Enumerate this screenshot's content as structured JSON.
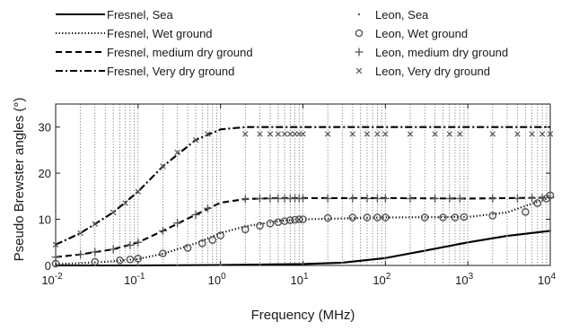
{
  "chart_data": {
    "type": "line",
    "xlabel": "Frequency (MHz)",
    "ylabel": "Pseudo Brewster angles (°)",
    "xscale": "log",
    "xlim": [
      0.01,
      10000
    ],
    "ylim": [
      0,
      35
    ],
    "grid": "vertical dotted",
    "legend_placement": "top, two columns",
    "x_ticks": [
      {
        "value": 0.01,
        "base": "10",
        "exp": "-2"
      },
      {
        "value": 0.1,
        "base": "10",
        "exp": "-1"
      },
      {
        "value": 1,
        "base": "10",
        "exp": "0"
      },
      {
        "value": 10,
        "base": "10",
        "exp": "1"
      },
      {
        "value": 100,
        "base": "10",
        "exp": "2"
      },
      {
        "value": 1000,
        "base": "10",
        "exp": "3"
      },
      {
        "value": 10000,
        "base": "10",
        "exp": "4"
      }
    ],
    "y_ticks": [
      0,
      10,
      20,
      30
    ],
    "series": [
      {
        "name": "Fresnel, Sea",
        "style": "solid",
        "marker": "none",
        "color": "#000000",
        "x": [
          0.01,
          0.1,
          1,
          10,
          30,
          100,
          300,
          1000,
          3000,
          10000
        ],
        "y": [
          0.0,
          0.0,
          0.1,
          0.3,
          0.6,
          1.6,
          3.2,
          5.0,
          6.4,
          7.5
        ]
      },
      {
        "name": "Fresnel, Wet ground",
        "style": "dotted",
        "marker": "none",
        "color": "#000000",
        "x": [
          0.01,
          0.02,
          0.05,
          0.1,
          0.2,
          0.5,
          1,
          2,
          5,
          10,
          100,
          1000,
          3000,
          10000
        ],
        "y": [
          0.3,
          0.5,
          0.9,
          1.4,
          2.5,
          4.8,
          7.0,
          8.5,
          9.6,
          10.0,
          10.4,
          10.5,
          11.5,
          14.8
        ]
      },
      {
        "name": "Fresnel, medium dry ground",
        "style": "dashed",
        "marker": "none",
        "color": "#000000",
        "x": [
          0.01,
          0.02,
          0.05,
          0.1,
          0.2,
          0.5,
          1,
          2,
          5,
          10,
          100,
          1000,
          10000
        ],
        "y": [
          1.8,
          2.4,
          3.5,
          5.0,
          7.5,
          11.0,
          13.6,
          14.4,
          14.6,
          14.6,
          14.6,
          14.5,
          14.7
        ]
      },
      {
        "name": "Fresnel, Very dry ground",
        "style": "dash-dot",
        "marker": "none",
        "color": "#000000",
        "x": [
          0.01,
          0.02,
          0.05,
          0.1,
          0.2,
          0.5,
          1,
          2,
          10,
          100,
          1000,
          10000
        ],
        "y": [
          4.5,
          7.0,
          11.5,
          16.0,
          21.5,
          27.2,
          29.5,
          30.0,
          30.0,
          30.0,
          30.0,
          30.0
        ]
      },
      {
        "name": "Leon, Sea",
        "style": "none",
        "marker": "dot",
        "color": "#555555",
        "x": [
          0.01,
          0.03,
          0.1,
          0.3,
          1,
          3,
          10,
          30,
          100,
          300,
          1000,
          3000,
          10000
        ],
        "y": [
          0.0,
          0.0,
          0.0,
          0.0,
          0.1,
          0.2,
          0.3,
          0.6,
          1.6,
          3.2,
          5.0,
          6.4,
          7.5
        ]
      },
      {
        "name": "Leon, Wet ground",
        "style": "none",
        "marker": "circle",
        "color": "#555555",
        "x": [
          0.01,
          0.03,
          0.06,
          0.08,
          0.1,
          0.2,
          0.4,
          0.6,
          0.8,
          1,
          2,
          3,
          4,
          5,
          6,
          7,
          8,
          9,
          10,
          20,
          40,
          60,
          80,
          100,
          300,
          500,
          700,
          900,
          2000,
          5000,
          7000,
          9000,
          10000
        ],
        "y": [
          0.4,
          0.8,
          1.1,
          1.3,
          1.5,
          2.6,
          3.8,
          4.8,
          5.5,
          6.5,
          7.8,
          8.6,
          9.1,
          9.4,
          9.6,
          9.8,
          9.9,
          10.0,
          10.0,
          10.3,
          10.4,
          10.4,
          10.4,
          10.4,
          10.4,
          10.4,
          10.4,
          10.5,
          10.8,
          11.6,
          13.5,
          14.5,
          15.2
        ]
      },
      {
        "name": "Leon, medium dry ground",
        "style": "none",
        "marker": "plus",
        "color": "#555555",
        "x": [
          0.01,
          0.02,
          0.03,
          0.05,
          0.08,
          0.1,
          0.2,
          0.3,
          0.5,
          0.7,
          2,
          3,
          4,
          5,
          6,
          7,
          8,
          9,
          10,
          20,
          40,
          60,
          80,
          100,
          200,
          400,
          600,
          800,
          2000,
          4000,
          6000,
          8000,
          10000
        ],
        "y": [
          1.8,
          2.4,
          2.9,
          3.5,
          4.4,
          5.0,
          7.5,
          9.2,
          11.0,
          12.4,
          14.4,
          14.5,
          14.5,
          14.5,
          14.5,
          14.5,
          14.5,
          14.5,
          14.5,
          14.5,
          14.5,
          14.5,
          14.5,
          14.5,
          14.5,
          14.5,
          14.5,
          14.5,
          14.5,
          14.5,
          14.6,
          14.6,
          14.7
        ]
      },
      {
        "name": "Leon, Very dry ground",
        "style": "none",
        "marker": "x",
        "color": "#555555",
        "x": [
          0.01,
          0.02,
          0.03,
          0.05,
          0.07,
          0.1,
          0.2,
          0.3,
          0.5,
          0.7,
          2,
          3,
          4,
          5,
          6,
          7,
          8,
          9,
          10,
          20,
          40,
          60,
          80,
          100,
          200,
          400,
          600,
          800,
          2000,
          4000,
          6000,
          8000,
          10000
        ],
        "y": [
          4.5,
          7.0,
          9.0,
          11.5,
          13.5,
          16.0,
          21.5,
          24.5,
          27.2,
          28.5,
          28.5,
          28.5,
          28.5,
          28.5,
          28.5,
          28.5,
          28.5,
          28.5,
          28.5,
          28.5,
          28.5,
          28.5,
          28.5,
          28.5,
          28.5,
          28.5,
          28.5,
          28.5,
          28.5,
          28.5,
          28.5,
          28.5,
          28.5
        ]
      }
    ]
  }
}
